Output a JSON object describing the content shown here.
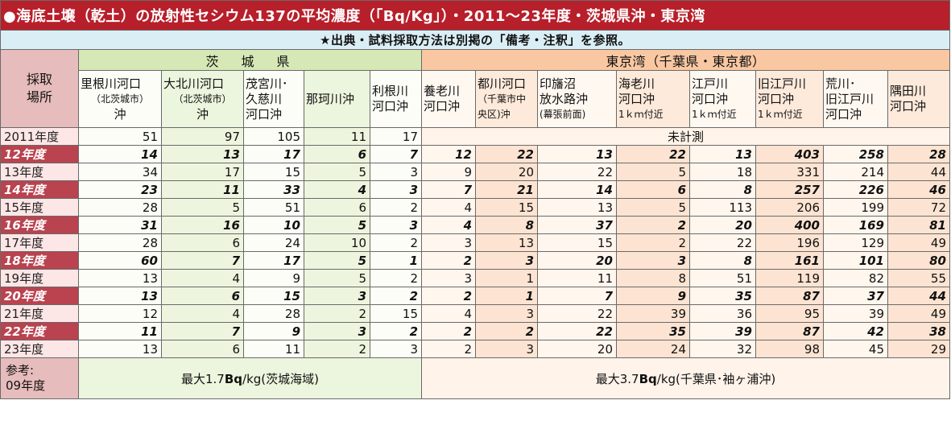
{
  "title": "●海底土壌（乾土）の放射性セシウム137の平均濃度（「Bq/Kg」）・2011〜23年度・茨城県沖・東京湾",
  "note": "★出典・試料採取方法は別掲の「備考・注釈」を参照。",
  "corner_label": [
    "採取",
    "場所"
  ],
  "groups": {
    "ibaraki": "茨　城　県",
    "tokyo_bay": "東京湾（千葉県・東京都）"
  },
  "headers": [
    {
      "group": "ibaraki",
      "lines": [
        {
          "t": "里根川河口"
        },
        {
          "t": "（北茨城市）",
          "s": true,
          "c": true
        },
        {
          "t": "沖",
          "c": true
        }
      ]
    },
    {
      "group": "ibaraki",
      "lines": [
        {
          "t": "大北川河口"
        },
        {
          "t": "（北茨城市）",
          "s": true,
          "c": true
        },
        {
          "t": "沖",
          "c": true
        }
      ]
    },
    {
      "group": "ibaraki",
      "lines": [
        {
          "t": "茂宮川･"
        },
        {
          "t": "久慈川"
        },
        {
          "t": "河口沖"
        }
      ]
    },
    {
      "group": "ibaraki",
      "lines": [
        {
          "t": "那珂川沖"
        }
      ]
    },
    {
      "group": "ibaraki",
      "lines": [
        {
          "t": "利根川"
        },
        {
          "t": "河口沖"
        }
      ]
    },
    {
      "group": "tokyo_bay",
      "lines": [
        {
          "t": "養老川"
        },
        {
          "t": "河口沖"
        }
      ]
    },
    {
      "group": "tokyo_bay",
      "lines": [
        {
          "t": "都川河口"
        },
        {
          "t": "（千葉市中",
          "s": true
        },
        {
          "t": "央区)沖",
          "s": true
        }
      ]
    },
    {
      "group": "tokyo_bay",
      "lines": [
        {
          "t": "印旛沼"
        },
        {
          "t": "放水路沖"
        },
        {
          "t": "(幕張前面)",
          "s": true
        }
      ]
    },
    {
      "group": "tokyo_bay",
      "lines": [
        {
          "t": "海老川"
        },
        {
          "t": "河口沖"
        },
        {
          "t": "1ｋｍ付近",
          "s": true
        }
      ]
    },
    {
      "group": "tokyo_bay",
      "lines": [
        {
          "t": "江戸川"
        },
        {
          "t": "河口沖"
        },
        {
          "t": "1ｋｍ付近",
          "s": true
        }
      ]
    },
    {
      "group": "tokyo_bay",
      "lines": [
        {
          "t": "旧江戸川"
        },
        {
          "t": "河口沖"
        },
        {
          "t": "1ｋｍ付近",
          "s": true
        }
      ]
    },
    {
      "group": "tokyo_bay",
      "lines": [
        {
          "t": "荒川･"
        },
        {
          "t": "旧江戸川"
        },
        {
          "t": "河口沖"
        }
      ]
    },
    {
      "group": "tokyo_bay",
      "lines": [
        {
          "t": "隅田川"
        },
        {
          "t": "河口沖"
        }
      ]
    }
  ],
  "unmeasured_label": "未計測",
  "rows": [
    {
      "label": "2011年度",
      "values": [
        "51",
        "97",
        "105",
        "11",
        "17"
      ],
      "unmeasured": true
    },
    {
      "label": "12年度",
      "values": [
        "14",
        "13",
        "17",
        "6",
        "7",
        "12",
        "22",
        "13",
        "22",
        "13",
        "403",
        "258",
        "28"
      ]
    },
    {
      "label": "13年度",
      "values": [
        "34",
        "17",
        "15",
        "5",
        "3",
        "9",
        "20",
        "22",
        "5",
        "18",
        "331",
        "214",
        "44"
      ]
    },
    {
      "label": "14年度",
      "values": [
        "23",
        "11",
        "33",
        "4",
        "3",
        "7",
        "21",
        "14",
        "6",
        "8",
        "257",
        "226",
        "46"
      ]
    },
    {
      "label": "15年度",
      "values": [
        "28",
        "5",
        "51",
        "6",
        "2",
        "4",
        "15",
        "13",
        "5",
        "113",
        "206",
        "199",
        "72"
      ]
    },
    {
      "label": "16年度",
      "values": [
        "31",
        "16",
        "10",
        "5",
        "3",
        "4",
        "8",
        "37",
        "2",
        "20",
        "400",
        "169",
        "81"
      ]
    },
    {
      "label": "17年度",
      "values": [
        "28",
        "6",
        "24",
        "10",
        "2",
        "3",
        "13",
        "15",
        "2",
        "22",
        "196",
        "129",
        "49"
      ]
    },
    {
      "label": "18年度",
      "values": [
        "60",
        "7",
        "17",
        "5",
        "1",
        "2",
        "3",
        "20",
        "3",
        "8",
        "161",
        "101",
        "80"
      ]
    },
    {
      "label": "19年度",
      "values": [
        "13",
        "4",
        "9",
        "5",
        "2",
        "3",
        "1",
        "11",
        "8",
        "51",
        "119",
        "82",
        "55"
      ]
    },
    {
      "label": "20年度",
      "values": [
        "13",
        "6",
        "15",
        "3",
        "2",
        "2",
        "1",
        "7",
        "9",
        "35",
        "87",
        "37",
        "44"
      ]
    },
    {
      "label": "21年度",
      "values": [
        "12",
        "4",
        "28",
        "2",
        "15",
        "4",
        "3",
        "22",
        "39",
        "36",
        "95",
        "39",
        "49"
      ]
    },
    {
      "label": "22年度",
      "values": [
        "11",
        "7",
        "9",
        "3",
        "2",
        "2",
        "2",
        "22",
        "35",
        "39",
        "87",
        "42",
        "38"
      ]
    },
    {
      "label": "23年度",
      "values": [
        "13",
        "6",
        "11",
        "2",
        "3",
        "2",
        "3",
        "20",
        "24",
        "32",
        "98",
        "45",
        "29"
      ]
    }
  ],
  "footer": {
    "label": [
      "参考:",
      "09年度"
    ],
    "ibaraki": {
      "prefix": "最大1.7",
      "unit": "Bq",
      "suffix": "/kg(茨城海域)"
    },
    "tokyo_bay": {
      "prefix": "最大3.7",
      "unit": "Bq",
      "suffix": "/kg(千葉県･袖ヶ浦沖)"
    }
  },
  "colors": {
    "title_bg": "#b71f2a",
    "note_bg": "#daeef5",
    "ibaraki_header": "#d5e8b6",
    "tokyo_header": "#f9c8a2",
    "even_year_label_bg": "#b9434f",
    "odd_year_label_bg": "#fde6e6"
  }
}
